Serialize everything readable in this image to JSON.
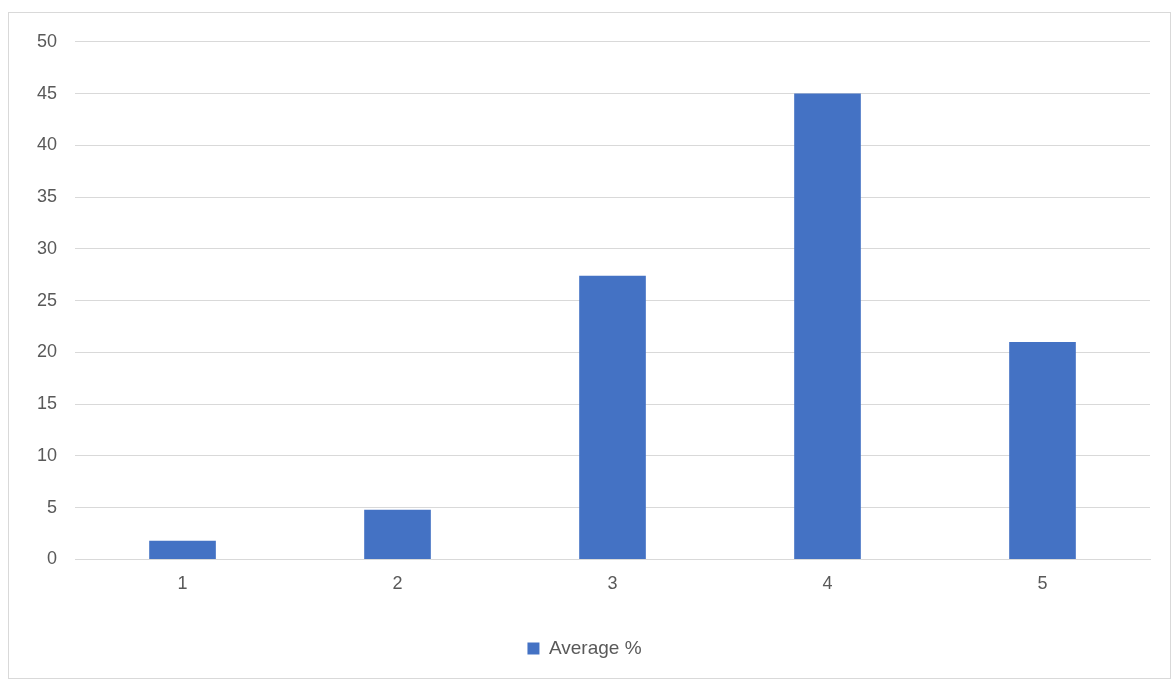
{
  "chart_data": {
    "type": "bar",
    "categories": [
      "1",
      "2",
      "3",
      "4",
      "5"
    ],
    "series": [
      {
        "name": "Average %",
        "color": "#4472c4",
        "values": [
          1.8,
          4.8,
          27.4,
          45,
          21
        ]
      }
    ],
    "ylim": [
      0,
      50
    ],
    "yticks": [
      0,
      5,
      10,
      15,
      20,
      25,
      30,
      35,
      40,
      45,
      50
    ],
    "grid": "y",
    "legend": "bottom"
  }
}
